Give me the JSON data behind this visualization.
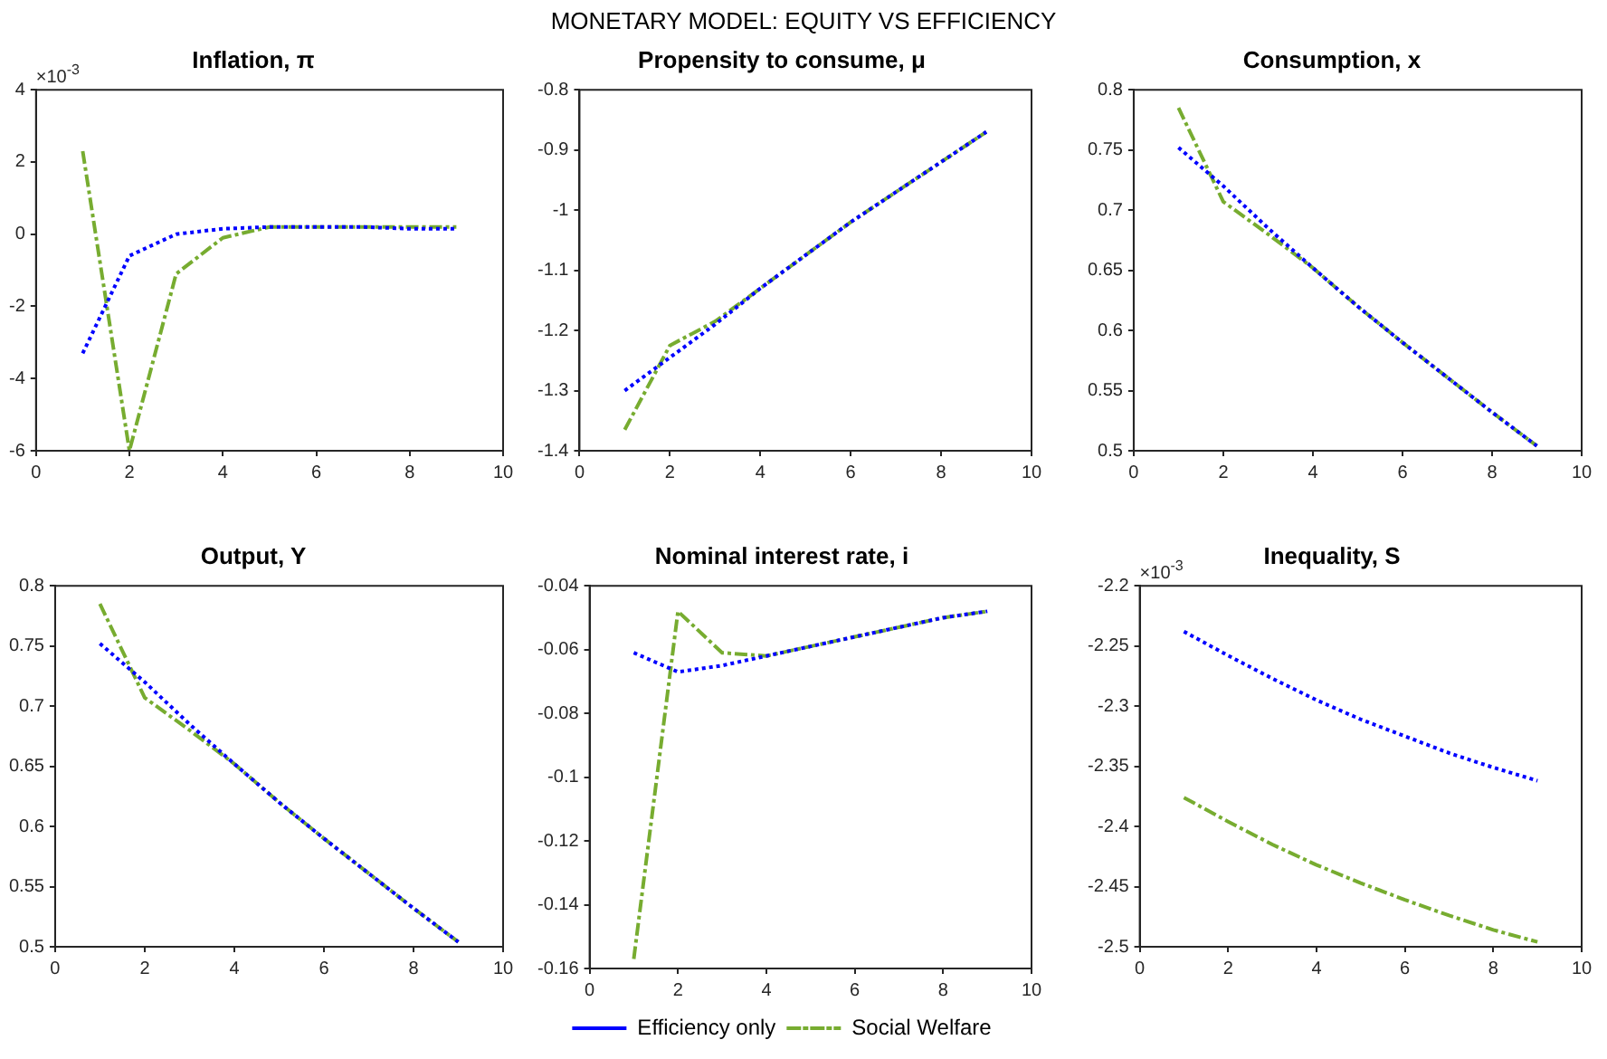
{
  "chart_data": [
    {
      "type": "other",
      "title": "MONETARY MODEL: EQUITY VS EFFICIENCY"
    },
    {
      "type": "line",
      "title": "Inflation, π",
      "x": [
        1,
        2,
        3,
        4,
        5,
        6,
        7,
        8,
        9
      ],
      "xlim": [
        0,
        10
      ],
      "xticks": [
        0,
        2,
        4,
        6,
        8,
        10
      ],
      "ylim": [
        -6,
        4
      ],
      "yticks": [
        -6,
        -4,
        -2,
        0,
        2,
        4
      ],
      "annotations": [
        "×10$^{-3}$"
      ],
      "marker": "none",
      "series": [
        {
          "color": "#0000ff",
          "line_style": "dotted",
          "values": [
            -3.3,
            -0.6,
            0.0,
            0.15,
            0.2,
            0.2,
            0.2,
            0.15,
            0.15
          ]
        },
        {
          "color": "#77ac30",
          "line_style": "dashed",
          "values": [
            2.3,
            -6.0,
            -1.1,
            -0.1,
            0.2,
            0.2,
            0.2,
            0.2,
            0.2
          ]
        }
      ]
    },
    {
      "type": "line",
      "title": "Propensity to consume, μ",
      "x": [
        1,
        2,
        3,
        4,
        5,
        6,
        7,
        8,
        9
      ],
      "xlim": [
        0,
        10
      ],
      "xticks": [
        0,
        2,
        4,
        6,
        8,
        10
      ],
      "ylim": [
        -1.4,
        -0.8
      ],
      "yticks": [
        -1.4,
        -1.3,
        -1.2,
        -1.1,
        -1,
        -0.9,
        -0.8
      ],
      "marker": "none",
      "series": [
        {
          "color": "#0000ff",
          "line_style": "dotted",
          "values": [
            -1.3,
            -1.245,
            -1.19,
            -1.13,
            -1.075,
            -1.02,
            -0.97,
            -0.92,
            -0.87
          ]
        },
        {
          "color": "#77ac30",
          "line_style": "dashed",
          "values": [
            -1.365,
            -1.225,
            -1.185,
            -1.13,
            -1.075,
            -1.02,
            -0.97,
            -0.92,
            -0.87
          ]
        }
      ]
    },
    {
      "type": "line",
      "title": "Consumption, x",
      "x": [
        1,
        2,
        3,
        4,
        5,
        6,
        7,
        8,
        9
      ],
      "xlim": [
        0,
        10
      ],
      "xticks": [
        0,
        2,
        4,
        6,
        8,
        10
      ],
      "ylim": [
        0.5,
        0.8
      ],
      "yticks": [
        0.5,
        0.55,
        0.6,
        0.65,
        0.7,
        0.75,
        0.8
      ],
      "marker": "none",
      "series": [
        {
          "color": "#0000ff",
          "line_style": "dotted",
          "values": [
            0.752,
            0.72,
            0.685,
            0.652,
            0.62,
            0.59,
            0.561,
            0.532,
            0.504
          ]
        },
        {
          "color": "#77ac30",
          "line_style": "dashed",
          "values": [
            0.785,
            0.707,
            0.68,
            0.652,
            0.62,
            0.59,
            0.561,
            0.532,
            0.504
          ]
        }
      ]
    },
    {
      "type": "line",
      "title": "Output, Y",
      "x": [
        1,
        2,
        3,
        4,
        5,
        6,
        7,
        8,
        9
      ],
      "xlim": [
        0,
        10
      ],
      "xticks": [
        0,
        2,
        4,
        6,
        8,
        10
      ],
      "ylim": [
        0.5,
        0.8
      ],
      "yticks": [
        0.5,
        0.55,
        0.6,
        0.65,
        0.7,
        0.75,
        0.8
      ],
      "marker": "none",
      "series": [
        {
          "color": "#0000ff",
          "line_style": "dotted",
          "values": [
            0.752,
            0.72,
            0.685,
            0.652,
            0.62,
            0.59,
            0.561,
            0.532,
            0.504
          ]
        },
        {
          "color": "#77ac30",
          "line_style": "dashed",
          "values": [
            0.785,
            0.707,
            0.68,
            0.652,
            0.62,
            0.59,
            0.561,
            0.532,
            0.504
          ]
        }
      ]
    },
    {
      "type": "line",
      "title": "Nominal interest rate, i",
      "x": [
        1,
        2,
        3,
        4,
        5,
        6,
        7,
        8,
        9
      ],
      "xlim": [
        0,
        10
      ],
      "xticks": [
        0,
        2,
        4,
        6,
        8,
        10
      ],
      "ylim": [
        -0.16,
        -0.04
      ],
      "yticks": [
        -0.16,
        -0.14,
        -0.12,
        -0.1,
        -0.08,
        -0.06,
        -0.04
      ],
      "marker": "none",
      "legend": "bottom",
      "series": [
        {
          "name": "Efficiency only",
          "color": "#0000ff",
          "line_style": "dotted",
          "values": [
            -0.061,
            -0.067,
            -0.065,
            -0.062,
            -0.059,
            -0.056,
            -0.053,
            -0.05,
            -0.048
          ]
        },
        {
          "name": "Social Welfare",
          "color": "#77ac30",
          "line_style": "dashed",
          "values": [
            -0.157,
            -0.048,
            -0.061,
            -0.062,
            -0.059,
            -0.056,
            -0.053,
            -0.05,
            -0.048
          ]
        }
      ]
    },
    {
      "type": "line",
      "title": "Inequality, S",
      "x": [
        1,
        2,
        3,
        4,
        5,
        6,
        7,
        8,
        9
      ],
      "xlim": [
        0,
        10
      ],
      "xticks": [
        0,
        2,
        4,
        6,
        8,
        10
      ],
      "ylim": [
        -2.5,
        -2.2
      ],
      "yticks": [
        -2.5,
        -2.45,
        -2.4,
        -2.35,
        -2.3,
        -2.25,
        -2.2
      ],
      "annotations": [
        "×10$^{-3}$"
      ],
      "marker": "none",
      "series": [
        {
          "color": "#0000ff",
          "line_style": "dotted",
          "values": [
            -2.238,
            -2.258,
            -2.277,
            -2.295,
            -2.311,
            -2.325,
            -2.339,
            -2.351,
            -2.362
          ]
        },
        {
          "color": "#77ac30",
          "line_style": "dashed",
          "values": [
            -2.376,
            -2.396,
            -2.415,
            -2.432,
            -2.447,
            -2.461,
            -2.474,
            -2.486,
            -2.496
          ]
        }
      ]
    }
  ]
}
